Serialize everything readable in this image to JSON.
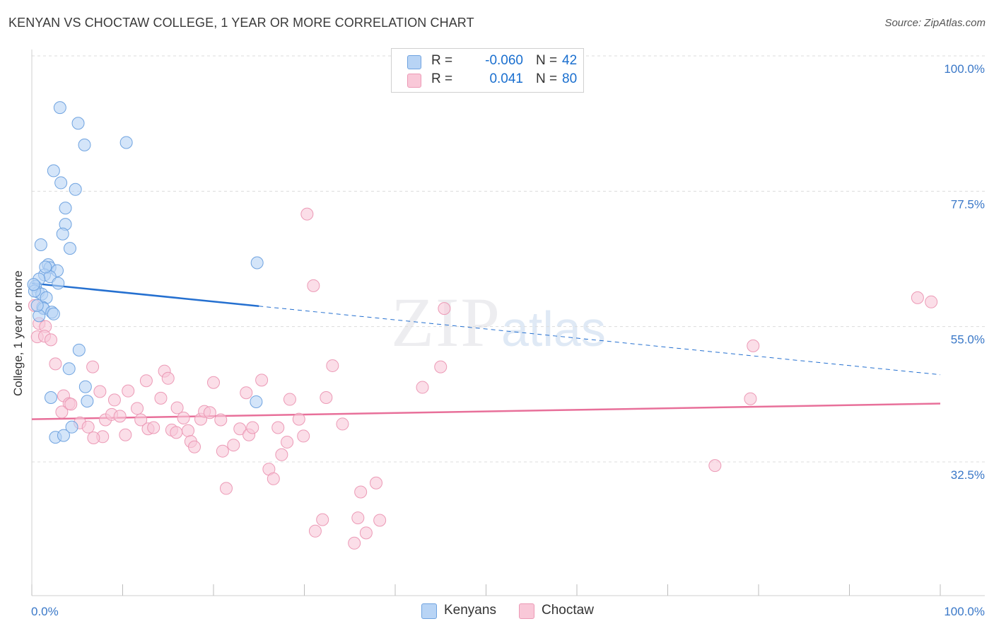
{
  "title": "KENYAN VS CHOCTAW COLLEGE, 1 YEAR OR MORE CORRELATION CHART",
  "source": "Source: ZipAtlas.com",
  "watermark": {
    "zip": "ZIP",
    "atlas": "atlas"
  },
  "colors": {
    "kenyan_fill": "#b8d4f5",
    "kenyan_stroke": "#6fa3e0",
    "kenyan_line": "#2570d0",
    "choctaw_fill": "#f9c8d8",
    "choctaw_stroke": "#ec9ab6",
    "choctaw_line": "#e8709a",
    "tick_label": "#3a78c8"
  },
  "legend": {
    "rows": [
      {
        "r_label": "R =",
        "r_value": "-0.060",
        "n_label": "N =",
        "n_value": "42"
      },
      {
        "r_label": "R =",
        "r_value": "0.041",
        "n_label": "N =",
        "n_value": "80"
      }
    ]
  },
  "bottom_legend": {
    "kenyans": "Kenyans",
    "choctaw": "Choctaw"
  },
  "chart_data": {
    "type": "scatter",
    "title": "KENYAN VS CHOCTAW COLLEGE, 1 YEAR OR MORE CORRELATION CHART",
    "xlabel": "",
    "ylabel": "College, 1 year or more",
    "xlim": [
      0,
      100
    ],
    "ylim": [
      11,
      103
    ],
    "x_tick_labels": {
      "left": "0.0%",
      "right": "100.0%"
    },
    "y_ticks": [
      {
        "value": 100.0,
        "label": "100.0%"
      },
      {
        "value": 77.5,
        "label": "77.5%"
      },
      {
        "value": 55.0,
        "label": "55.0%"
      },
      {
        "value": 32.5,
        "label": "32.5%"
      }
    ],
    "grid": true,
    "series": [
      {
        "name": "Kenyans",
        "r": -0.06,
        "n": 42,
        "trend": {
          "x0": 0,
          "y0": 62.2,
          "x1": 25,
          "y1": 58.4,
          "dashed_to_x": 100,
          "dashed_to_y": 47.0
        },
        "points": [
          [
            3.1,
            91.4
          ],
          [
            5.1,
            88.8
          ],
          [
            5.8,
            85.2
          ],
          [
            10.4,
            85.6
          ],
          [
            2.4,
            80.9
          ],
          [
            3.2,
            78.9
          ],
          [
            4.8,
            77.8
          ],
          [
            3.7,
            74.7
          ],
          [
            3.7,
            72.0
          ],
          [
            3.4,
            70.4
          ],
          [
            1.0,
            68.6
          ],
          [
            4.2,
            68.0
          ],
          [
            1.8,
            65.3
          ],
          [
            2.0,
            64.8
          ],
          [
            2.8,
            64.3
          ],
          [
            1.4,
            63.6
          ],
          [
            2.0,
            63.3
          ],
          [
            0.8,
            62.9
          ],
          [
            2.9,
            62.2
          ],
          [
            0.4,
            61.7
          ],
          [
            0.7,
            60.7
          ],
          [
            1.1,
            60.4
          ],
          [
            0.3,
            60.9
          ],
          [
            1.6,
            59.8
          ],
          [
            1.2,
            58.2
          ],
          [
            1.3,
            58.0
          ],
          [
            2.2,
            57.4
          ],
          [
            2.4,
            57.1
          ],
          [
            0.8,
            56.8
          ],
          [
            24.8,
            65.6
          ],
          [
            5.2,
            51.1
          ],
          [
            4.1,
            48.0
          ],
          [
            5.9,
            45.0
          ],
          [
            6.1,
            42.6
          ],
          [
            2.1,
            43.2
          ],
          [
            24.7,
            42.5
          ],
          [
            4.4,
            38.3
          ],
          [
            2.6,
            36.6
          ],
          [
            3.5,
            36.9
          ],
          [
            0.2,
            62.0
          ],
          [
            1.5,
            64.9
          ],
          [
            0.6,
            58.5
          ]
        ]
      },
      {
        "name": "Choctaw",
        "r": 0.041,
        "n": 80,
        "trend": {
          "x0": 0,
          "y0": 39.6,
          "x1": 100,
          "y1": 42.2
        },
        "points": [
          [
            0.3,
            58.5
          ],
          [
            0.8,
            55.5
          ],
          [
            1.5,
            55.0
          ],
          [
            0.6,
            53.3
          ],
          [
            1.4,
            53.4
          ],
          [
            2.1,
            52.8
          ],
          [
            2.6,
            48.8
          ],
          [
            6.7,
            48.3
          ],
          [
            3.5,
            43.5
          ],
          [
            4.1,
            42.2
          ],
          [
            7.5,
            44.2
          ],
          [
            3.3,
            40.8
          ],
          [
            5.3,
            39.0
          ],
          [
            6.2,
            38.3
          ],
          [
            7.8,
            36.7
          ],
          [
            8.1,
            39.5
          ],
          [
            8.8,
            40.4
          ],
          [
            9.1,
            42.8
          ],
          [
            9.7,
            40.1
          ],
          [
            10.6,
            44.3
          ],
          [
            10.3,
            37.0
          ],
          [
            11.6,
            41.4
          ],
          [
            12.0,
            39.5
          ],
          [
            12.8,
            38.0
          ],
          [
            12.6,
            46.0
          ],
          [
            13.4,
            38.2
          ],
          [
            14.2,
            43.1
          ],
          [
            14.6,
            47.6
          ],
          [
            15.0,
            46.4
          ],
          [
            15.4,
            37.8
          ],
          [
            16.0,
            41.5
          ],
          [
            16.7,
            39.8
          ],
          [
            17.2,
            37.7
          ],
          [
            17.5,
            35.9
          ],
          [
            17.9,
            35.0
          ],
          [
            18.6,
            39.6
          ],
          [
            19.0,
            40.9
          ],
          [
            19.6,
            40.7
          ],
          [
            20.0,
            45.7
          ],
          [
            20.8,
            39.5
          ],
          [
            21.0,
            34.3
          ],
          [
            22.2,
            35.3
          ],
          [
            22.9,
            38.0
          ],
          [
            23.9,
            37.0
          ],
          [
            24.3,
            38.2
          ],
          [
            23.6,
            44.0
          ],
          [
            25.3,
            46.1
          ],
          [
            26.1,
            31.3
          ],
          [
            26.6,
            29.7
          ],
          [
            27.1,
            38.2
          ],
          [
            27.5,
            33.7
          ],
          [
            28.1,
            35.8
          ],
          [
            28.4,
            42.9
          ],
          [
            29.4,
            39.6
          ],
          [
            29.9,
            36.8
          ],
          [
            21.4,
            28.1
          ],
          [
            30.3,
            73.7
          ],
          [
            31.0,
            61.8
          ],
          [
            31.2,
            21.0
          ],
          [
            32.4,
            43.2
          ],
          [
            32.0,
            22.9
          ],
          [
            33.1,
            48.5
          ],
          [
            34.2,
            38.8
          ],
          [
            35.5,
            19.0
          ],
          [
            35.9,
            23.2
          ],
          [
            36.2,
            27.5
          ],
          [
            36.8,
            20.7
          ],
          [
            37.9,
            29.0
          ],
          [
            38.3,
            22.8
          ],
          [
            43.0,
            44.9
          ],
          [
            45.0,
            48.3
          ],
          [
            45.4,
            58.0
          ],
          [
            75.2,
            31.9
          ],
          [
            79.1,
            43.0
          ],
          [
            79.4,
            51.8
          ],
          [
            97.5,
            59.8
          ],
          [
            99.0,
            59.1
          ],
          [
            4.3,
            42.1
          ],
          [
            6.8,
            36.5
          ],
          [
            15.9,
            37.4
          ]
        ]
      }
    ]
  }
}
